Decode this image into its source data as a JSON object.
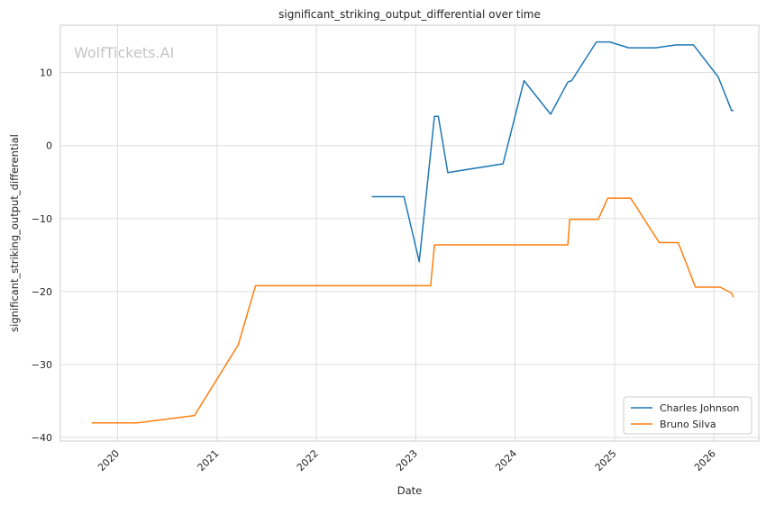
{
  "chart_data": {
    "type": "line",
    "title": "significant_striking_output_differential over time",
    "xlabel": "Date",
    "ylabel": "significant_striking_output_differential",
    "watermark": "WolfTickets.AI",
    "x_type": "date",
    "xlim": [
      "2019-06-05",
      "2026-06-15"
    ],
    "ylim": [
      -40.5,
      16.5
    ],
    "x_ticks": [
      "2020-01-01",
      "2021-01-01",
      "2022-01-01",
      "2023-01-01",
      "2024-01-01",
      "2025-01-01",
      "2026-01-01"
    ],
    "x_tick_labels": [
      "2020",
      "2021",
      "2022",
      "2023",
      "2024",
      "2025",
      "2026"
    ],
    "y_ticks": [
      -40,
      -30,
      -20,
      -10,
      0,
      10
    ],
    "y_tick_labels": [
      "−40",
      "−30",
      "−20",
      "−10",
      "0",
      "10"
    ],
    "grid": true,
    "legend_position": "bottom-right",
    "series": [
      {
        "name": "Charles Johnson",
        "color": "#1f77b4",
        "points": [
          [
            "2022-07-23",
            -7.0
          ],
          [
            "2022-11-19",
            -7.0
          ],
          [
            "2023-01-14",
            -15.9
          ],
          [
            "2023-03-11",
            4.0
          ],
          [
            "2023-03-25",
            4.0
          ],
          [
            "2023-04-29",
            -3.7
          ],
          [
            "2023-11-18",
            -2.5
          ],
          [
            "2024-02-03",
            8.9
          ],
          [
            "2024-05-11",
            4.3
          ],
          [
            "2024-07-13",
            8.7
          ],
          [
            "2024-07-27",
            8.9
          ],
          [
            "2024-10-26",
            14.2
          ],
          [
            "2024-12-14",
            14.2
          ],
          [
            "2025-02-22",
            13.4
          ],
          [
            "2025-05-31",
            13.4
          ],
          [
            "2025-08-16",
            13.8
          ],
          [
            "2025-10-18",
            13.8
          ],
          [
            "2026-01-17",
            9.4
          ],
          [
            "2026-03-07",
            4.8
          ],
          [
            "2026-03-14",
            4.8
          ]
        ]
      },
      {
        "name": "Bruno Silva",
        "color": "#ff7f0e",
        "points": [
          [
            "2019-09-28",
            -38.0
          ],
          [
            "2020-03-14",
            -38.0
          ],
          [
            "2020-10-10",
            -37.0
          ],
          [
            "2021-03-20",
            -27.3
          ],
          [
            "2021-05-22",
            -19.2
          ],
          [
            "2023-02-25",
            -19.2
          ],
          [
            "2023-03-11",
            -13.6
          ],
          [
            "2024-07-13",
            -13.6
          ],
          [
            "2024-07-20",
            -10.1
          ],
          [
            "2024-11-02",
            -10.1
          ],
          [
            "2024-12-07",
            -7.2
          ],
          [
            "2025-03-01",
            -7.2
          ],
          [
            "2025-06-14",
            -13.3
          ],
          [
            "2025-08-23",
            -13.3
          ],
          [
            "2025-10-25",
            -19.4
          ],
          [
            "2026-01-24",
            -19.4
          ],
          [
            "2026-03-07",
            -20.2
          ],
          [
            "2026-03-14",
            -20.8
          ]
        ]
      }
    ]
  }
}
